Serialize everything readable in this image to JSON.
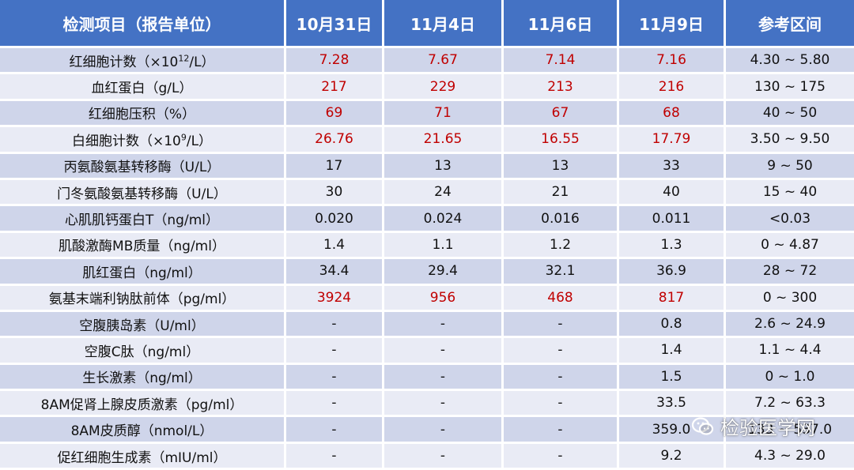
{
  "table": {
    "headers": [
      "检测项目（报告单位）",
      "10月31日",
      "11月4日",
      "11月6日",
      "11月9日",
      "参考区间"
    ],
    "rows": [
      {
        "item": "红细胞计数（×10",
        "sup": "12",
        "unit_tail": "/L）",
        "values": [
          "7.28",
          "7.67",
          "7.14",
          "7.16"
        ],
        "abnormal": [
          true,
          true,
          true,
          true
        ],
        "ref": "4.30 ~ 5.80"
      },
      {
        "item": "血红蛋白（g/L）",
        "values": [
          "217",
          "229",
          "213",
          "216"
        ],
        "abnormal": [
          true,
          true,
          true,
          true
        ],
        "ref": "130 ~ 175"
      },
      {
        "item": "红细胞压积（%）",
        "values": [
          "69",
          "71",
          "67",
          "68"
        ],
        "abnormal": [
          true,
          true,
          true,
          true
        ],
        "ref": "40 ~ 50"
      },
      {
        "item": "白细胞计数（×10",
        "sup": "9",
        "unit_tail": "/L）",
        "values": [
          "26.76",
          "21.65",
          "16.55",
          "17.79"
        ],
        "abnormal": [
          true,
          true,
          true,
          true
        ],
        "ref": "3.50 ~ 9.50"
      },
      {
        "item": "丙氨酸氨基转移酶（U/L）",
        "values": [
          "17",
          "13",
          "13",
          "33"
        ],
        "abnormal": [
          false,
          false,
          false,
          false
        ],
        "ref": "9 ~ 50"
      },
      {
        "item": "门冬氨酸氨基转移酶（U/L）",
        "values": [
          "30",
          "24",
          "21",
          "40"
        ],
        "abnormal": [
          false,
          false,
          false,
          false
        ],
        "ref": "15 ~ 40"
      },
      {
        "item": "心肌肌钙蛋白T（ng/ml）",
        "values": [
          "0.020",
          "0.024",
          "0.016",
          "0.011"
        ],
        "abnormal": [
          false,
          false,
          false,
          false
        ],
        "ref": "<0.03"
      },
      {
        "item": "肌酸激酶MB质量（ng/ml）",
        "values": [
          "1.4",
          "1.1",
          "1.2",
          "1.3"
        ],
        "abnormal": [
          false,
          false,
          false,
          false
        ],
        "ref": "0 ~ 4.87"
      },
      {
        "item": "肌红蛋白（ng/ml）",
        "values": [
          "34.4",
          "29.4",
          "32.1",
          "36.9"
        ],
        "abnormal": [
          false,
          false,
          false,
          false
        ],
        "ref": "28 ~ 72"
      },
      {
        "item": "氨基末端利钠肽前体（pg/ml）",
        "values": [
          "3924",
          "956",
          "468",
          "817"
        ],
        "abnormal": [
          true,
          true,
          true,
          true
        ],
        "ref": "0 ~ 300"
      },
      {
        "item": "空腹胰岛素（U/ml）",
        "values": [
          "-",
          "-",
          "-",
          "0.8"
        ],
        "abnormal": [
          false,
          false,
          false,
          false
        ],
        "ref": "2.6 ~ 24.9"
      },
      {
        "item": "空腹C肽（ng/ml）",
        "values": [
          "-",
          "-",
          "-",
          "1.4"
        ],
        "abnormal": [
          false,
          false,
          false,
          false
        ],
        "ref": "1.1 ~ 4.4"
      },
      {
        "item": "生长激素（ng/ml）",
        "values": [
          "-",
          "-",
          "-",
          "1.5"
        ],
        "abnormal": [
          false,
          false,
          false,
          false
        ],
        "ref": "0 ~ 1.0"
      },
      {
        "item": "8AM促肾上腺皮质激素（pg/ml）",
        "values": [
          "-",
          "-",
          "-",
          "33.5"
        ],
        "abnormal": [
          false,
          false,
          false,
          false
        ],
        "ref": "7.2 ~ 63.3"
      },
      {
        "item": "8AM皮质醇（nmol/L）",
        "values": [
          "-",
          "-",
          "-",
          "359.0"
        ],
        "abnormal": [
          false,
          false,
          false,
          false
        ],
        "ref": "133 ~ 537.0"
      },
      {
        "item": "促红细胞生成素（mIU/ml）",
        "values": [
          "-",
          "-",
          "-",
          "9.2"
        ],
        "abnormal": [
          false,
          false,
          false,
          false
        ],
        "ref": "4.3 ~ 29.0"
      }
    ]
  },
  "colors": {
    "header_bg": "#4472c4",
    "row_odd": "#cfd5ea",
    "row_even": "#e9ebf5",
    "abnormal_text": "#c00000"
  },
  "watermark": {
    "icon": "wechat-icon",
    "text": "检验医学网"
  }
}
